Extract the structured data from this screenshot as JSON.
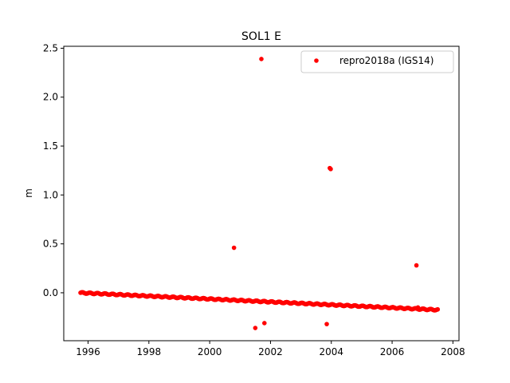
{
  "chart_data": {
    "type": "scatter",
    "title": "SOL1 E",
    "xlabel": "",
    "ylabel": "m",
    "xlim": [
      1995.2,
      2008.2
    ],
    "ylim": [
      -0.49,
      2.52
    ],
    "grid": false,
    "legend_position": "top-right",
    "x_ticks": [
      1996,
      1998,
      2000,
      2002,
      2004,
      2006,
      2008
    ],
    "x_tick_labels": [
      "1996",
      "1998",
      "2000",
      "2002",
      "2004",
      "2006",
      "2008"
    ],
    "y_ticks": [
      0.0,
      0.5,
      1.0,
      1.5,
      2.0,
      2.5
    ],
    "y_tick_labels": [
      "0.0",
      "0.5",
      "1.0",
      "1.5",
      "2.0",
      "2.5"
    ],
    "series": [
      {
        "name": "repro2018a (IGS14)",
        "color": "#ff0000",
        "marker": "circle",
        "trend": {
          "x_start": 1995.75,
          "y_start": 0.0,
          "x_end": 2007.5,
          "y_end": -0.175,
          "description": "dense daily solutions forming a linear trend"
        },
        "outliers": [
          {
            "x": 2001.7,
            "y": 2.39
          },
          {
            "x": 2003.95,
            "y": 1.275
          },
          {
            "x": 2003.98,
            "y": 1.265
          },
          {
            "x": 2000.8,
            "y": 0.46
          },
          {
            "x": 2006.8,
            "y": 0.28
          },
          {
            "x": 2001.5,
            "y": -0.36
          },
          {
            "x": 2001.8,
            "y": -0.31
          },
          {
            "x": 2003.85,
            "y": -0.32
          },
          {
            "x": 2006.85,
            "y": -0.15
          }
        ]
      }
    ]
  }
}
